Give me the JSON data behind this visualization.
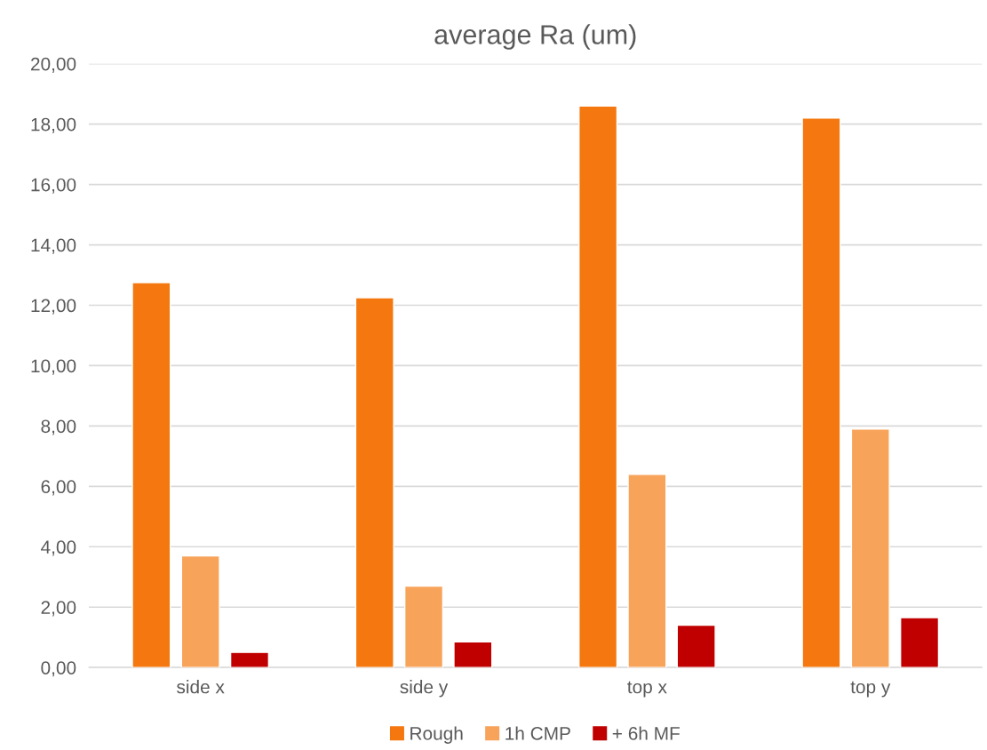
{
  "chart_data": {
    "type": "bar",
    "title": "average Ra (um)",
    "categories": [
      "side x",
      "side y",
      "top x",
      "top y"
    ],
    "series": [
      {
        "name": "Rough",
        "color": "#f4780f",
        "values": [
          12.75,
          12.25,
          18.6,
          18.2
        ]
      },
      {
        "name": "1h CMP",
        "color": "#f8a35a",
        "values": [
          3.7,
          2.7,
          6.4,
          7.9
        ]
      },
      {
        "name": "+ 6h MF",
        "color": "#c00000",
        "values": [
          0.5,
          0.85,
          1.4,
          1.65
        ]
      }
    ],
    "ylim": [
      0,
      20
    ],
    "yticks": [
      {
        "value": 0,
        "label": "0,00"
      },
      {
        "value": 2,
        "label": "2,00"
      },
      {
        "value": 4,
        "label": "4,00"
      },
      {
        "value": 6,
        "label": "6,00"
      },
      {
        "value": 8,
        "label": "8,00"
      },
      {
        "value": 10,
        "label": "10,00"
      },
      {
        "value": 12,
        "label": "12,00"
      },
      {
        "value": 14,
        "label": "14,00"
      },
      {
        "value": 16,
        "label": "16,00"
      },
      {
        "value": 18,
        "label": "18,00"
      },
      {
        "value": 20,
        "label": "20,00"
      }
    ],
    "grid": "y",
    "legend": "bottom"
  }
}
